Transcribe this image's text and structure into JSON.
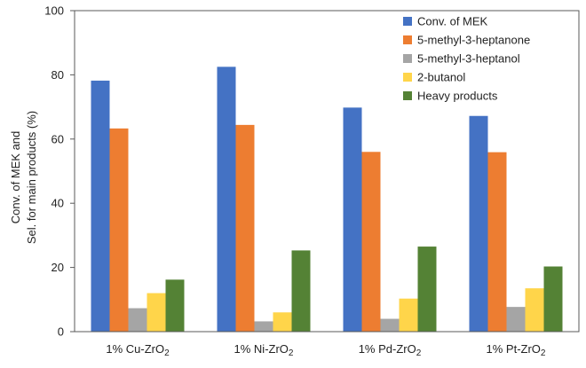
{
  "chart_data": {
    "type": "bar",
    "title": "",
    "xlabel": "",
    "ylabel": [
      "Conv. of MEK and",
      "Sel. for main products (%)"
    ],
    "ylim": [
      0,
      100
    ],
    "yticks": [
      0,
      20,
      40,
      60,
      80,
      100
    ],
    "grid": false,
    "legend_position": "top-right",
    "categories": [
      {
        "prefix": "1% ",
        "base": "Cu-ZrO",
        "sub": "2"
      },
      {
        "prefix": "1% ",
        "base": "Ni-ZrO",
        "sub": "2"
      },
      {
        "prefix": "1% ",
        "base": "Pd-ZrO",
        "sub": "2"
      },
      {
        "prefix": "1% ",
        "base": "Pt-ZrO",
        "sub": "2"
      }
    ],
    "series": [
      {
        "name": "Conv. of MEK",
        "color": "#4472C4",
        "values": [
          78.2,
          82.5,
          69.8,
          67.2
        ]
      },
      {
        "name": "5-methyl-3-heptanone",
        "color": "#ED7D31",
        "values": [
          63.3,
          64.4,
          56.0,
          55.9
        ]
      },
      {
        "name": "5-methyl-3-heptanol",
        "color": "#A5A5A5",
        "values": [
          7.3,
          3.2,
          4.0,
          7.7
        ]
      },
      {
        "name": "2-butanol",
        "color": "#FFD54A",
        "values": [
          12.0,
          6.0,
          10.3,
          13.5
        ]
      },
      {
        "name": "Heavy products",
        "color": "#548235",
        "values": [
          16.2,
          25.3,
          26.5,
          20.3
        ]
      }
    ]
  }
}
